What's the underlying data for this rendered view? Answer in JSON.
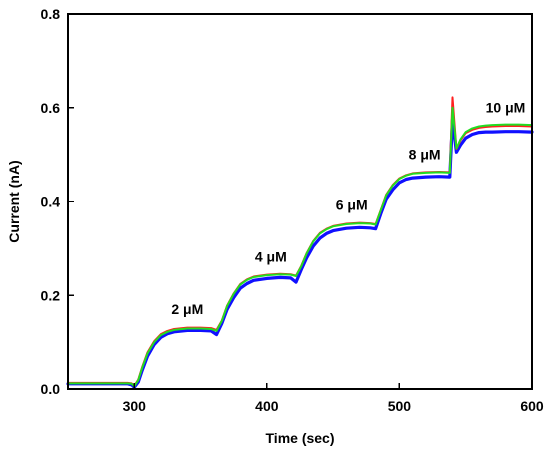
{
  "chart_data": {
    "type": "line",
    "title": "",
    "xlabel": "Time (sec)",
    "ylabel": "Current (nA)",
    "xlim": [
      250,
      600
    ],
    "ylim": [
      0.0,
      0.8
    ],
    "xticks": [
      {
        "value": 300,
        "label": "300"
      },
      {
        "value": 400,
        "label": "400"
      },
      {
        "value": 500,
        "label": "500"
      },
      {
        "value": 600,
        "label": "600"
      }
    ],
    "yticks": [
      {
        "value": 0.0,
        "label": "0.0"
      },
      {
        "value": 0.2,
        "label": "0.2"
      },
      {
        "value": 0.4,
        "label": "0.4"
      },
      {
        "value": 0.6,
        "label": "0.6"
      },
      {
        "value": 0.8,
        "label": "0.8"
      }
    ],
    "grid": false,
    "legend": "none",
    "series": [
      {
        "color": "#1010ff",
        "x": [
          250,
          260,
          270,
          280,
          290,
          295,
          298,
          300,
          303,
          306,
          310,
          315,
          320,
          325,
          330,
          340,
          350,
          358,
          362,
          366,
          370,
          375,
          380,
          385,
          390,
          400,
          410,
          418,
          422,
          426,
          430,
          435,
          440,
          445,
          450,
          460,
          470,
          478,
          482,
          486,
          490,
          495,
          500,
          505,
          510,
          520,
          530,
          538,
          540,
          543,
          546,
          550,
          555,
          560,
          565,
          570,
          580,
          590,
          600
        ],
        "y": [
          0.011,
          0.011,
          0.011,
          0.011,
          0.011,
          0.011,
          0.009,
          0.004,
          0.015,
          0.04,
          0.07,
          0.095,
          0.11,
          0.118,
          0.122,
          0.125,
          0.125,
          0.124,
          0.116,
          0.14,
          0.17,
          0.195,
          0.215,
          0.225,
          0.232,
          0.236,
          0.238,
          0.237,
          0.228,
          0.255,
          0.28,
          0.305,
          0.322,
          0.332,
          0.338,
          0.343,
          0.345,
          0.344,
          0.342,
          0.375,
          0.405,
          0.425,
          0.44,
          0.447,
          0.45,
          0.452,
          0.453,
          0.452,
          0.575,
          0.505,
          0.52,
          0.535,
          0.543,
          0.547,
          0.548,
          0.548,
          0.549,
          0.549,
          0.548
        ]
      },
      {
        "color": "#ff2020",
        "x": [
          250,
          260,
          270,
          280,
          290,
          295,
          298,
          300,
          303,
          306,
          310,
          315,
          320,
          325,
          330,
          340,
          350,
          358,
          362,
          366,
          370,
          375,
          380,
          385,
          390,
          400,
          410,
          418,
          422,
          426,
          430,
          435,
          440,
          445,
          450,
          460,
          470,
          478,
          482,
          486,
          490,
          495,
          500,
          505,
          510,
          520,
          530,
          538,
          540,
          543,
          546,
          550,
          555,
          560,
          565,
          570,
          580,
          590,
          600
        ],
        "y": [
          0.013,
          0.013,
          0.013,
          0.013,
          0.013,
          0.013,
          0.012,
          0.007,
          0.02,
          0.047,
          0.078,
          0.102,
          0.117,
          0.124,
          0.128,
          0.131,
          0.131,
          0.13,
          0.126,
          0.146,
          0.178,
          0.204,
          0.224,
          0.234,
          0.24,
          0.244,
          0.246,
          0.245,
          0.242,
          0.263,
          0.29,
          0.316,
          0.333,
          0.342,
          0.348,
          0.353,
          0.355,
          0.354,
          0.352,
          0.383,
          0.414,
          0.435,
          0.449,
          0.456,
          0.46,
          0.462,
          0.463,
          0.462,
          0.622,
          0.512,
          0.53,
          0.546,
          0.553,
          0.557,
          0.559,
          0.56,
          0.561,
          0.561,
          0.56
        ]
      },
      {
        "color": "#22dd22",
        "x": [
          250,
          260,
          270,
          280,
          290,
          295,
          298,
          300,
          303,
          306,
          310,
          315,
          320,
          325,
          330,
          340,
          350,
          358,
          362,
          366,
          370,
          375,
          380,
          385,
          390,
          400,
          410,
          418,
          422,
          426,
          430,
          435,
          440,
          445,
          450,
          460,
          470,
          478,
          482,
          486,
          490,
          495,
          500,
          505,
          510,
          520,
          530,
          538,
          540,
          543,
          546,
          550,
          555,
          560,
          565,
          570,
          580,
          590,
          600
        ],
        "y": [
          0.012,
          0.012,
          0.012,
          0.012,
          0.012,
          0.012,
          0.011,
          0.006,
          0.019,
          0.045,
          0.076,
          0.1,
          0.115,
          0.122,
          0.126,
          0.129,
          0.129,
          0.128,
          0.124,
          0.145,
          0.177,
          0.203,
          0.223,
          0.233,
          0.239,
          0.243,
          0.245,
          0.244,
          0.241,
          0.262,
          0.289,
          0.315,
          0.332,
          0.341,
          0.347,
          0.352,
          0.354,
          0.353,
          0.351,
          0.382,
          0.413,
          0.434,
          0.448,
          0.455,
          0.459,
          0.461,
          0.462,
          0.461,
          0.6,
          0.513,
          0.532,
          0.548,
          0.556,
          0.56,
          0.562,
          0.563,
          0.564,
          0.564,
          0.563
        ]
      }
    ],
    "annotations": [
      {
        "text": "2 μM",
        "x": 340,
        "y": 0.16
      },
      {
        "text": "4 μM",
        "x": 403,
        "y": 0.272
      },
      {
        "text": "6 μM",
        "x": 464,
        "y": 0.383
      },
      {
        "text": "8 μM",
        "x": 519,
        "y": 0.49
      },
      {
        "text": "10 μM",
        "x": 580,
        "y": 0.59
      }
    ]
  }
}
